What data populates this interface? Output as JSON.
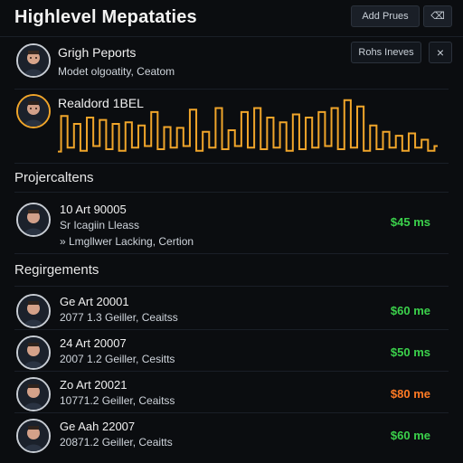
{
  "header": {
    "title": "Highlevel Mepataties",
    "add_button_label": "Add Prues",
    "close_button_label": "⌫"
  },
  "profile_card": {
    "name": "Grigh Peports",
    "subtitle": "Modet olgoatity, Ceatom",
    "action_label": "Rohs Ineves",
    "close_label": "×"
  },
  "chart_card": {
    "title": "Realdord 1BEL",
    "colors": {
      "line": "#f0a52a"
    }
  },
  "chart_data": {
    "type": "line",
    "x": [
      1,
      2,
      3,
      4,
      5,
      6,
      7,
      8,
      9,
      10,
      11,
      12,
      13,
      14,
      15,
      16,
      17,
      18,
      19,
      20,
      21,
      22,
      23,
      24,
      25,
      26,
      27,
      28,
      29,
      30,
      31,
      32,
      33,
      34,
      35,
      36,
      37,
      38,
      39,
      40,
      41,
      42,
      43,
      44,
      45,
      46,
      47,
      48,
      49,
      50,
      51,
      52,
      53,
      54,
      55,
      56,
      57,
      58,
      59,
      60
    ],
    "series": [
      {
        "values": [
          5,
          50,
          10,
          40,
          6,
          48,
          12,
          45,
          8,
          40,
          6,
          42,
          10,
          38,
          12,
          55,
          8,
          36,
          10,
          35,
          12,
          58,
          6,
          30,
          10,
          60,
          8,
          32,
          12,
          55,
          10,
          60,
          8,
          48,
          10,
          42,
          6,
          52,
          8,
          48,
          10,
          55,
          12,
          60,
          8,
          70,
          10,
          62,
          6,
          38,
          8,
          30,
          10,
          25,
          6,
          28,
          10,
          20,
          6,
          12
        ]
      }
    ],
    "ylim": [
      0,
      80
    ]
  },
  "section_projects": {
    "title": "Projercaltens",
    "item": {
      "line1": "10 Art 90005",
      "line2": "Sr Icagiin Lleass",
      "line3": "» Lmgllwer Lacking, Certion",
      "amount": "$45 ms"
    }
  },
  "section_reg": {
    "title": "Regirgements",
    "items": [
      {
        "line1": "Ge Art 20001",
        "line2": "2077 1.3 Geiller, Ceaitss",
        "amount": "$60 me",
        "color": "#3bd14b"
      },
      {
        "line1": "24 Art 20007",
        "line2": "2007 1.2 Geiller, Cesitts",
        "amount": "$50 ms",
        "color": "#3bd14b"
      },
      {
        "line1": "Zo Art 20021",
        "line2": "10771.2 Geiller, Ceaitss",
        "amount": "$80 me",
        "color": "#ff7a24"
      },
      {
        "line1": "Ge Aah 22007",
        "line2": "20871.2 Geiller, Ceaitts",
        "amount": "$60 me",
        "color": "#3bd14b"
      }
    ]
  }
}
